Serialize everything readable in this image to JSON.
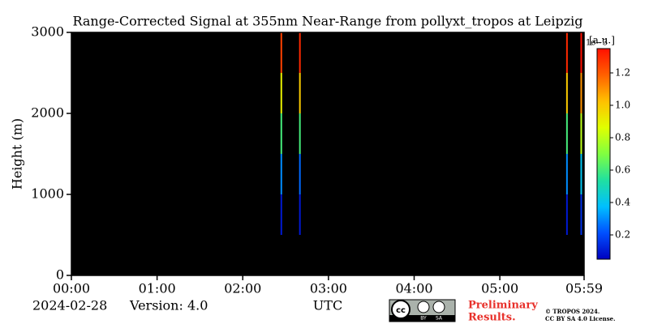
{
  "chart_data": {
    "type": "heatmap",
    "title": "Range-Corrected Signal at 355nm Near-Range from pollyxt_tropos at Leipzig",
    "x_label": "UTC",
    "y_label": "Height (m)",
    "date": "2024-02-28",
    "version": "Version: 4.0",
    "xlim": [
      0,
      359
    ],
    "xticks": [
      {
        "value": 0,
        "label": "00:00"
      },
      {
        "value": 60,
        "label": "01:00"
      },
      {
        "value": 120,
        "label": "02:00"
      },
      {
        "value": 180,
        "label": "03:00"
      },
      {
        "value": 240,
        "label": "04:00"
      },
      {
        "value": 300,
        "label": "05:00"
      },
      {
        "value": 359,
        "label": "05:59"
      }
    ],
    "ylim": [
      0,
      3000
    ],
    "yticks": [
      0,
      1000,
      2000,
      3000
    ],
    "background": "#000000",
    "streaks": [
      {
        "x": 147,
        "heights": [
          750,
          1250,
          1750,
          2250,
          2750
        ],
        "values": [
          0.1,
          0.3,
          0.6,
          0.9,
          1.25
        ]
      },
      {
        "x": 160,
        "heights": [
          750,
          1250,
          1750,
          2250,
          2750
        ],
        "values": [
          0.1,
          0.25,
          0.6,
          1.0,
          1.3
        ]
      },
      {
        "x": 347,
        "heights": [
          750,
          1250,
          1750,
          2250,
          2750
        ],
        "values": [
          0.1,
          0.3,
          0.6,
          1.0,
          1.3
        ]
      },
      {
        "x": 357,
        "heights": [
          750,
          1250,
          1750,
          2250,
          2750
        ],
        "values": [
          0.15,
          0.4,
          0.8,
          1.1,
          1.35
        ]
      }
    ],
    "colorbar": {
      "unit": "[a.u.]",
      "exponent": "1e−3",
      "lim": [
        0.05,
        1.35
      ],
      "ticks": [
        0.2,
        0.4,
        0.6,
        0.8,
        {
          "value": 1.0,
          "label": "1.0"
        },
        1.2
      ],
      "colormap": [
        "#0000c0",
        "#0050ff",
        "#00c0ff",
        "#20e0a0",
        "#80ff40",
        "#e0ff00",
        "#ffc000",
        "#ff6000",
        "#ff1000"
      ]
    },
    "footer": {
      "preliminary": [
        "Preliminary",
        "Results."
      ],
      "license": [
        "© TROPOS 2024.",
        "CC BY SA 4.0 License."
      ],
      "logo": [
        "BY",
        "SA"
      ]
    }
  }
}
